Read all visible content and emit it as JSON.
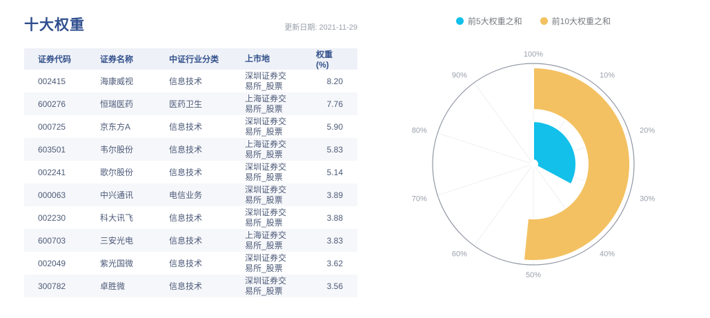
{
  "page": {
    "title": "十大权重",
    "update_text": "更新日期: 2021-11-29"
  },
  "table": {
    "headers": [
      "证券代码",
      "证券名称",
      "中证行业分类",
      "上市地",
      "权重(%)"
    ],
    "rows": [
      {
        "code": "002415",
        "name": "海康威视",
        "industry": "信息技术",
        "listing": "深圳证券交易所_股票",
        "weight": "8.20"
      },
      {
        "code": "600276",
        "name": "恒瑞医药",
        "industry": "医药卫生",
        "listing": "上海证券交易所_股票",
        "weight": "7.76"
      },
      {
        "code": "000725",
        "name": "京东方A",
        "industry": "信息技术",
        "listing": "深圳证券交易所_股票",
        "weight": "5.90"
      },
      {
        "code": "603501",
        "name": "韦尔股份",
        "industry": "信息技术",
        "listing": "上海证券交易所_股票",
        "weight": "5.83"
      },
      {
        "code": "002241",
        "name": "歌尔股份",
        "industry": "信息技术",
        "listing": "深圳证券交易所_股票",
        "weight": "5.14"
      },
      {
        "code": "000063",
        "name": "中兴通讯",
        "industry": "电信业务",
        "listing": "深圳证券交易所_股票",
        "weight": "3.89"
      },
      {
        "code": "002230",
        "name": "科大讯飞",
        "industry": "信息技术",
        "listing": "深圳证券交易所_股票",
        "weight": "3.88"
      },
      {
        "code": "600703",
        "name": "三安光电",
        "industry": "信息技术",
        "listing": "上海证券交易所_股票",
        "weight": "3.83"
      },
      {
        "code": "002049",
        "name": "紫光国微",
        "industry": "信息技术",
        "listing": "深圳证券交易所_股票",
        "weight": "3.62"
      },
      {
        "code": "300782",
        "name": "卓胜微",
        "industry": "信息技术",
        "listing": "深圳证券交易所_股票",
        "weight": "3.56"
      }
    ]
  },
  "chart": {
    "legend": [
      {
        "label": "前5大权重之和",
        "color": "#12c0ea"
      },
      {
        "label": "前10大权重之和",
        "color": "#f3c161"
      }
    ]
  },
  "chart_data": {
    "type": "bar",
    "subtype": "polar-radial-bar",
    "title": "",
    "legend_position": "top",
    "angle_axis": {
      "unit": "%",
      "min": 0,
      "max": 100,
      "clockwise": true,
      "start_at": "top",
      "ticks_clockwise_from_top": [
        "100%",
        "10%",
        "20%",
        "30%",
        "40%",
        "50%",
        "60%",
        "70%",
        "80%",
        "90%"
      ]
    },
    "grid": "radial spokes every 10%, outer circle",
    "series": [
      {
        "name": "前5大权重之和",
        "value": 32.83,
        "color": "#12c0ea",
        "ring": "inner"
      },
      {
        "name": "前10大权重之和",
        "value": 51.61,
        "color": "#f3c161",
        "ring": "outer"
      }
    ]
  }
}
